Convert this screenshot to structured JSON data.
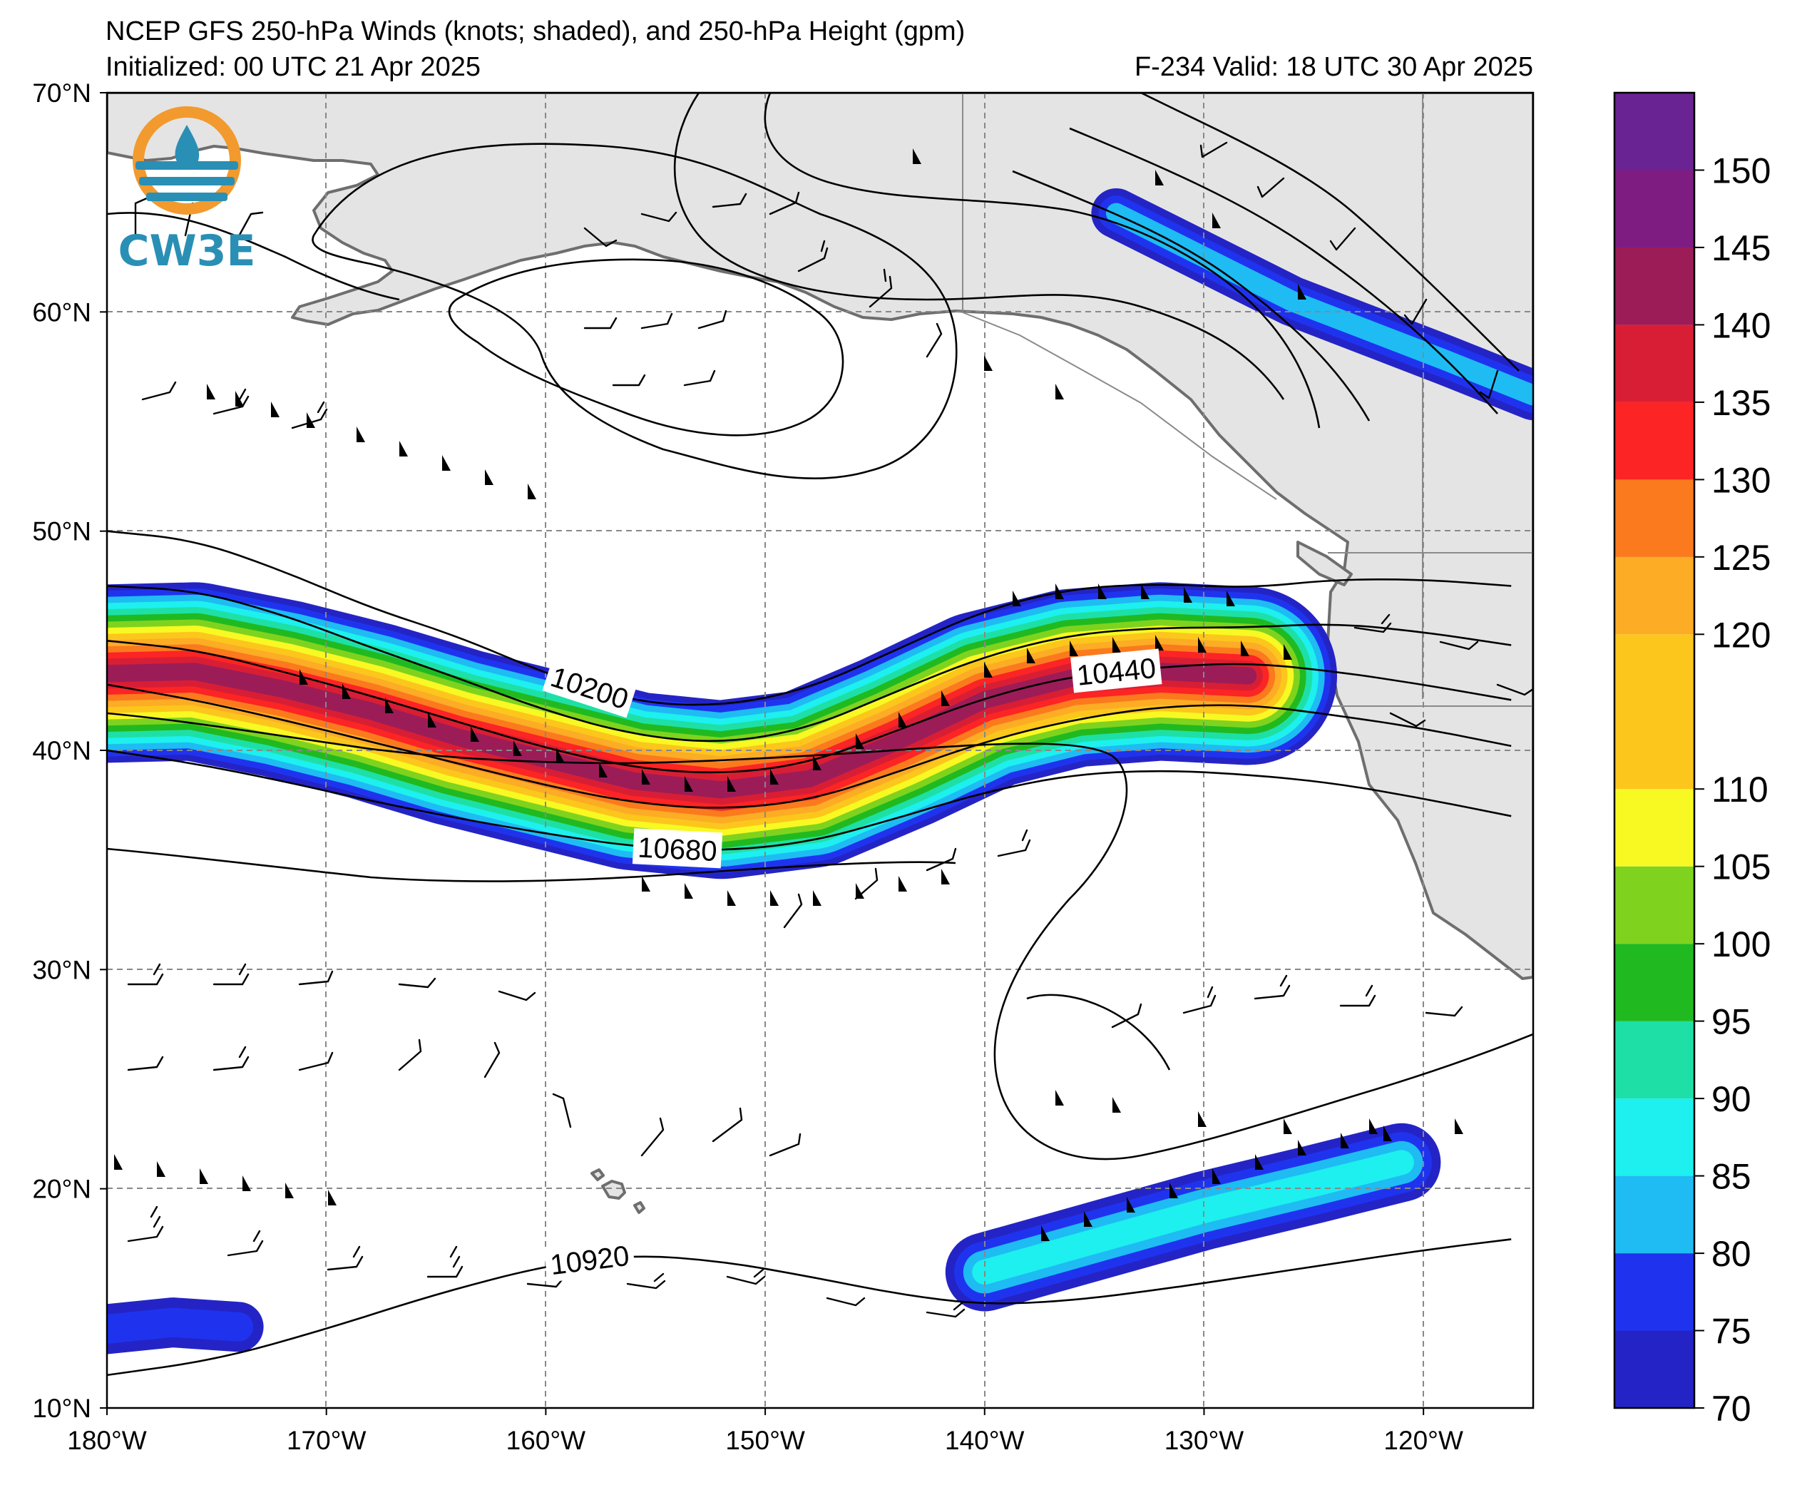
{
  "title": {
    "line1": "NCEP GFS 250-hPa Winds (knots; shaded), and 250-hPa Height (gpm)",
    "init": "Initialized: 00 UTC 21 Apr 2025",
    "valid": "F-234  Valid: 18 UTC 30 Apr 2025"
  },
  "logo": {
    "text": "CW3E",
    "icon": "cw3e-water-drop-logo"
  },
  "map": {
    "lon_range": [
      -180,
      -115
    ],
    "lat_range": [
      10,
      70
    ],
    "lat_ticks": [
      {
        "value": 70,
        "label": "70°N"
      },
      {
        "value": 60,
        "label": "60°N"
      },
      {
        "value": 50,
        "label": "50°N"
      },
      {
        "value": 40,
        "label": "40°N"
      },
      {
        "value": 30,
        "label": "30°N"
      },
      {
        "value": 20,
        "label": "20°N"
      },
      {
        "value": 10,
        "label": "10°N"
      }
    ],
    "lon_ticks": [
      {
        "value": -180,
        "label": "180°W"
      },
      {
        "value": -170,
        "label": "170°W"
      },
      {
        "value": -160,
        "label": "160°W"
      },
      {
        "value": -150,
        "label": "150°W"
      },
      {
        "value": -140,
        "label": "140°W"
      },
      {
        "value": -130,
        "label": "130°W"
      },
      {
        "value": -120,
        "label": "120°W"
      }
    ],
    "grid": "dashed",
    "land_color": "#e4e4e4",
    "coast_color": "#6e6e6e"
  },
  "contours": [
    {
      "label": "10200",
      "points": [
        [
          -180,
          50
        ],
        [
          -176,
          49.6
        ],
        [
          -172,
          48.2
        ],
        [
          -168,
          46.5
        ],
        [
          -164,
          45.2
        ],
        [
          -160,
          43.5
        ],
        [
          -156,
          42.2
        ],
        [
          -152,
          42
        ],
        [
          -148,
          42.8
        ],
        [
          -144,
          44.6
        ],
        [
          -140,
          46.4
        ],
        [
          -136,
          47.4
        ],
        [
          -132,
          47.6
        ],
        [
          -128,
          47.4
        ],
        [
          -124,
          47.8
        ],
        [
          -120,
          47.8
        ],
        [
          -116,
          47.5
        ]
      ]
    },
    {
      "label": "",
      "points": [
        [
          -180,
          47.5
        ],
        [
          -176,
          47.3
        ],
        [
          -172,
          46.2
        ],
        [
          -168,
          44.7
        ],
        [
          -164,
          43.3
        ],
        [
          -160,
          41.8
        ],
        [
          -156,
          40.7
        ],
        [
          -152,
          40.3
        ],
        [
          -148,
          41
        ],
        [
          -144,
          42.7
        ],
        [
          -140,
          44.3
        ],
        [
          -136,
          45.3
        ],
        [
          -132,
          45.6
        ],
        [
          -128,
          45.6
        ],
        [
          -124,
          45.8
        ],
        [
          -120,
          45.4
        ],
        [
          -116,
          44.8
        ]
      ]
    },
    {
      "label": "10440",
      "points": [
        [
          -180,
          45
        ],
        [
          -176,
          44.6
        ],
        [
          -172,
          43.6
        ],
        [
          -168,
          42.5
        ],
        [
          -164,
          41.3
        ],
        [
          -160,
          40.1
        ],
        [
          -156,
          39.2
        ],
        [
          -152,
          38.9
        ],
        [
          -148,
          39.4
        ],
        [
          -144,
          40.9
        ],
        [
          -140,
          42.4
        ],
        [
          -136,
          43.4
        ],
        [
          -132,
          43.8
        ],
        [
          -128,
          44
        ],
        [
          -124,
          43.6
        ],
        [
          -120,
          43
        ],
        [
          -116,
          42.3
        ]
      ]
    },
    {
      "label": "",
      "points": [
        [
          -180,
          43
        ],
        [
          -176,
          42.3
        ],
        [
          -172,
          41.4
        ],
        [
          -168,
          40.4
        ],
        [
          -164,
          39.4
        ],
        [
          -160,
          38.4
        ],
        [
          -156,
          37.6
        ],
        [
          -152,
          37.3
        ],
        [
          -148,
          37.7
        ],
        [
          -144,
          39
        ],
        [
          -140,
          40.4
        ],
        [
          -136,
          41.4
        ],
        [
          -132,
          42
        ],
        [
          -128,
          42.1
        ],
        [
          -124,
          41.6
        ],
        [
          -120,
          41
        ],
        [
          -116,
          40.2
        ]
      ]
    },
    {
      "label": "10680",
      "points": [
        [
          -180,
          40
        ],
        [
          -176,
          39.4
        ],
        [
          -172,
          38.6
        ],
        [
          -168,
          37.7
        ],
        [
          -164,
          36.9
        ],
        [
          -160,
          36.2
        ],
        [
          -156,
          35.6
        ],
        [
          -152,
          35.4
        ],
        [
          -148,
          35.8
        ],
        [
          -144,
          36.9
        ],
        [
          -140,
          38.1
        ],
        [
          -136,
          38.9
        ],
        [
          -132,
          39.1
        ],
        [
          -128,
          38.9
        ],
        [
          -124,
          38.5
        ],
        [
          -120,
          37.8
        ],
        [
          -116,
          37
        ]
      ]
    },
    {
      "label": "10920",
      "points": [
        [
          -180,
          11.5
        ],
        [
          -175,
          12.2
        ],
        [
          -170,
          13.6
        ],
        [
          -165,
          15.2
        ],
        [
          -160,
          16.5
        ],
        [
          -156,
          17
        ],
        [
          -152,
          16.7
        ],
        [
          -148,
          16
        ],
        [
          -144,
          15.2
        ],
        [
          -140,
          14.7
        ],
        [
          -136,
          14.9
        ],
        [
          -132,
          15.4
        ],
        [
          -128,
          16
        ],
        [
          -124,
          16.6
        ],
        [
          -120,
          17.2
        ],
        [
          -116,
          17.7
        ]
      ]
    }
  ],
  "jets": [
    {
      "core": [
        [
          -180,
          43.5
        ],
        [
          -176,
          43.6
        ],
        [
          -172,
          42.8
        ],
        [
          -168,
          41.8
        ],
        [
          -164,
          40.6
        ],
        [
          -160,
          39.6
        ],
        [
          -156,
          38.6
        ],
        [
          -152,
          38.2
        ],
        [
          -148,
          38.7
        ],
        [
          -144,
          40.4
        ],
        [
          -140,
          42.3
        ],
        [
          -136,
          43.3
        ],
        [
          -132,
          43.6
        ],
        [
          -128,
          43.4
        ]
      ],
      "peak": 145
    },
    {
      "core": [
        [
          -140,
          16.2
        ],
        [
          -135,
          17.6
        ],
        [
          -130,
          19
        ],
        [
          -125,
          20.2
        ],
        [
          -121,
          21.2
        ]
      ],
      "peak": 90
    },
    {
      "core": [
        [
          -134,
          64.5
        ],
        [
          -126,
          60.5
        ],
        [
          -119,
          57.8
        ],
        [
          -115,
          56.2
        ]
      ],
      "peak": 85
    },
    {
      "core": [
        [
          -180,
          13.6
        ],
        [
          -177,
          13.9
        ],
        [
          -174,
          13.7
        ]
      ],
      "peak": 78
    }
  ],
  "colorbar": {
    "min": 70,
    "max": 155,
    "bins": [
      {
        "from": 70,
        "to": 75,
        "color": "#2424c6"
      },
      {
        "from": 75,
        "to": 80,
        "color": "#1f33ef"
      },
      {
        "from": 80,
        "to": 85,
        "color": "#1ebcf3"
      },
      {
        "from": 85,
        "to": 90,
        "color": "#1df0ee"
      },
      {
        "from": 90,
        "to": 95,
        "color": "#1ee0a6"
      },
      {
        "from": 95,
        "to": 100,
        "color": "#20ba20"
      },
      {
        "from": 100,
        "to": 105,
        "color": "#7fd31e"
      },
      {
        "from": 105,
        "to": 110,
        "color": "#f8f823"
      },
      {
        "from": 110,
        "to": 120,
        "color": "#fcc61c"
      },
      {
        "from": 120,
        "to": 125,
        "color": "#fcac25"
      },
      {
        "from": 125,
        "to": 130,
        "color": "#fb7a1d"
      },
      {
        "from": 130,
        "to": 135,
        "color": "#fc2424"
      },
      {
        "from": 135,
        "to": 140,
        "color": "#d81e35"
      },
      {
        "from": 140,
        "to": 145,
        "color": "#9c1c58"
      },
      {
        "from": 145,
        "to": 150,
        "color": "#7e1c82"
      },
      {
        "from": 150,
        "to": 155,
        "color": "#6a2393"
      }
    ],
    "tick_labels": [
      "70",
      "75",
      "80",
      "85",
      "90",
      "95",
      "100",
      "105",
      "110",
      "120",
      "125",
      "130",
      "135",
      "140",
      "145",
      "150"
    ]
  }
}
